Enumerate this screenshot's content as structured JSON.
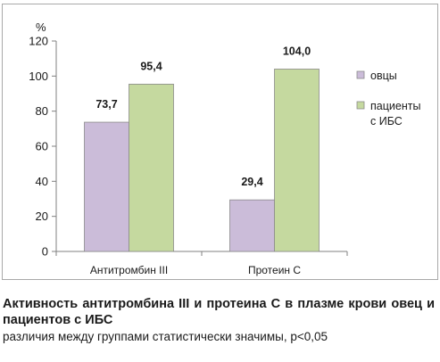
{
  "chart_data": {
    "type": "bar",
    "unit": "%",
    "categories": [
      "Антитромбин III",
      "Протеин С"
    ],
    "series": [
      {
        "name": "овцы",
        "values": [
          73.7,
          29.4
        ],
        "labels": [
          "73,7",
          "29,4"
        ],
        "color": "#cbbcd9"
      },
      {
        "name": "пациенты с ИБС",
        "name_lines": [
          "пациенты",
          "с ИБС"
        ],
        "values": [
          95.4,
          104.0
        ],
        "labels": [
          "95,4",
          "104,0"
        ],
        "color": "#c5d99f"
      }
    ],
    "ylim": [
      0,
      120
    ],
    "yticks": [
      0,
      20,
      40,
      60,
      80,
      100,
      120
    ],
    "grid": false,
    "legend_position": "right"
  },
  "caption": {
    "title": "Активность антитромбина III и протеина С в плазме крови овец и пациентов с ИБС",
    "note": "различия между группами статистически значимы, p<0,05"
  }
}
